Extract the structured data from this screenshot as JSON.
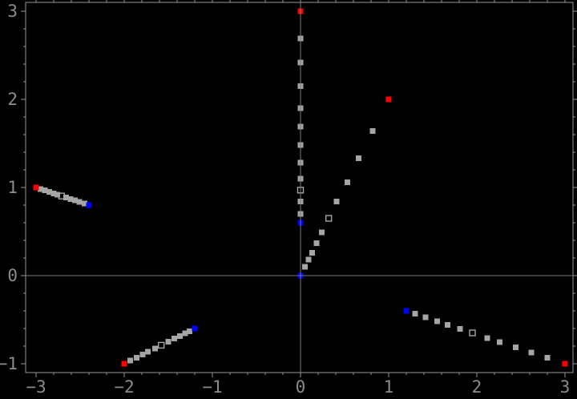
{
  "figure": {
    "background": "#000000",
    "frame_color": "#989898",
    "axis_line_color": "#787878",
    "tick_label_color": "#8c8c8c",
    "trail_color": "#a5a5a5",
    "start_color": "#ff0000",
    "end_color": "#0000ff"
  },
  "chart_data": {
    "type": "scatter",
    "title": "",
    "xlabel": "",
    "ylabel": "",
    "xlim": [
      -3.118,
      3.091
    ],
    "ylim": [
      -1.1,
      3.1
    ],
    "x_major_ticks": [
      -3,
      -2,
      -1,
      0,
      1,
      2,
      3
    ],
    "x_tick_labels": [
      "−3",
      "−2",
      "−1",
      "0",
      "1",
      "2",
      "3"
    ],
    "y_major_ticks": [
      -1,
      0,
      1,
      2,
      3
    ],
    "y_tick_labels": [
      "−1",
      "0",
      "1",
      "2",
      "3"
    ],
    "minor_tick_step": 0.2,
    "grid": false,
    "origin_axes": true,
    "legend_position": "none",
    "marker_size_px": 7,
    "series_description": [
      {
        "name": "start-points",
        "color": "#ff0000",
        "marker": "filled-square"
      },
      {
        "name": "iterate-trails",
        "color": "#a5a5a5",
        "marker": "filled-square (one open square per trail)"
      },
      {
        "name": "end-points",
        "color": "#0000ff",
        "marker": "filled-square"
      }
    ],
    "trajectories": [
      {
        "start": [
          0,
          3
        ],
        "end": [
          0,
          0.6
        ],
        "trail": [
          [
            0,
            2.69
          ],
          [
            0,
            2.42
          ],
          [
            0,
            2.15
          ],
          [
            0,
            1.9
          ],
          [
            0,
            1.69
          ],
          [
            0,
            1.48
          ],
          [
            0,
            1.28
          ],
          [
            0,
            1.1
          ],
          [
            0,
            0.97
          ],
          [
            0,
            0.84
          ],
          [
            0,
            0.7
          ]
        ],
        "open_index": 8
      },
      {
        "start": [
          1,
          2
        ],
        "end": [
          0,
          0
        ],
        "trail": [
          [
            0.82,
            1.64
          ],
          [
            0.66,
            1.33
          ],
          [
            0.53,
            1.06
          ],
          [
            0.41,
            0.84
          ],
          [
            0.32,
            0.65
          ],
          [
            0.24,
            0.49
          ],
          [
            0.18,
            0.37
          ],
          [
            0.13,
            0.26
          ],
          [
            0.09,
            0.18
          ],
          [
            0.05,
            0.1
          ]
        ],
        "open_index": 4
      },
      {
        "start": [
          -3,
          1
        ],
        "end": [
          -2.4,
          0.8
        ],
        "trail": [
          [
            -2.95,
            0.983
          ],
          [
            -2.9,
            0.967
          ],
          [
            -2.85,
            0.95
          ],
          [
            -2.8,
            0.933
          ],
          [
            -2.76,
            0.92
          ],
          [
            -2.71,
            0.903
          ],
          [
            -2.66,
            0.887
          ],
          [
            -2.61,
            0.87
          ],
          [
            -2.56,
            0.853
          ],
          [
            -2.51,
            0.837
          ],
          [
            -2.45,
            0.817
          ]
        ],
        "open_index": 5
      },
      {
        "start": [
          -2,
          -1
        ],
        "end": [
          -1.2,
          -0.6
        ],
        "trail": [
          [
            -1.93,
            -0.965
          ],
          [
            -1.86,
            -0.93
          ],
          [
            -1.79,
            -0.895
          ],
          [
            -1.73,
            -0.865
          ],
          [
            -1.65,
            -0.825
          ],
          [
            -1.58,
            -0.79
          ],
          [
            -1.5,
            -0.75
          ],
          [
            -1.43,
            -0.715
          ],
          [
            -1.37,
            -0.685
          ],
          [
            -1.31,
            -0.655
          ],
          [
            -1.26,
            -0.63
          ]
        ],
        "open_index": 5
      },
      {
        "start": [
          3,
          -1
        ],
        "end": [
          1.2,
          -0.4
        ],
        "trail": [
          [
            1.3,
            -0.433
          ],
          [
            1.42,
            -0.473
          ],
          [
            1.55,
            -0.517
          ],
          [
            1.67,
            -0.557
          ],
          [
            1.81,
            -0.603
          ],
          [
            1.95,
            -0.65
          ],
          [
            2.12,
            -0.707
          ],
          [
            2.26,
            -0.753
          ],
          [
            2.44,
            -0.813
          ],
          [
            2.62,
            -0.873
          ],
          [
            2.8,
            -0.933
          ]
        ],
        "open_index": 5
      }
    ]
  }
}
